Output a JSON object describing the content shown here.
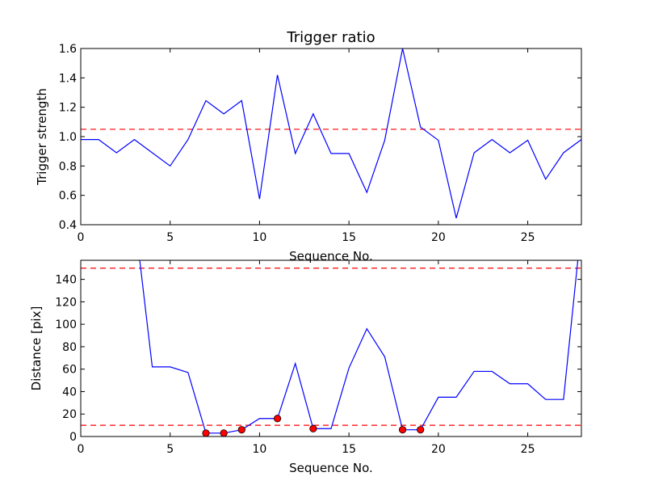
{
  "colors": {
    "line": "#0000ff",
    "ref": "#ff0000",
    "marker": "#ff0000",
    "axes": "#000000"
  },
  "chart_data": [
    {
      "id": "top",
      "type": "line",
      "title": "Trigger ratio",
      "xlabel": "Sequence No.",
      "ylabel": "Trigger strength",
      "xlim": [
        0,
        28
      ],
      "ylim": [
        0.4,
        1.6
      ],
      "xticks": [
        0,
        5,
        10,
        15,
        20,
        25
      ],
      "yticks": [
        0.4,
        0.6,
        0.8,
        1.0,
        1.2,
        1.4,
        1.6
      ],
      "series": [
        {
          "x": [
            0,
            1,
            2,
            3,
            4,
            5,
            6,
            7,
            8,
            9,
            10,
            11,
            12,
            13,
            14,
            15,
            16,
            17,
            18,
            19,
            20,
            21,
            22,
            23,
            24,
            25,
            26,
            27,
            28
          ],
          "y": [
            0.98,
            0.98,
            0.89,
            0.98,
            0.89,
            0.8,
            0.98,
            1.245,
            1.155,
            1.245,
            0.575,
            1.42,
            0.885,
            1.155,
            0.885,
            0.885,
            0.62,
            0.975,
            1.6,
            1.065,
            0.975,
            0.445,
            0.89,
            0.98,
            0.89,
            0.975,
            0.71,
            0.89,
            0.98
          ]
        }
      ],
      "hlines": [
        1.05
      ],
      "markers": []
    },
    {
      "id": "bottom",
      "type": "line",
      "title": "",
      "xlabel": "Sequence No.",
      "ylabel": "Distance [pix]",
      "xlim": [
        0,
        28
      ],
      "ylim": [
        0,
        157
      ],
      "xticks": [
        0,
        5,
        10,
        15,
        20,
        25
      ],
      "yticks": [
        0,
        20,
        40,
        60,
        80,
        100,
        120,
        140
      ],
      "series": [
        {
          "x": [
            3.3,
            4,
            5,
            6,
            7,
            8,
            9,
            10,
            11,
            12,
            13,
            14,
            15,
            16,
            17,
            18,
            19,
            20,
            21,
            22,
            23,
            24,
            25,
            26,
            27,
            27.8
          ],
          "y": [
            157,
            62,
            62,
            57,
            3,
            3,
            6,
            16,
            16,
            65,
            7,
            7,
            61,
            96,
            71,
            6,
            6,
            35,
            35,
            58,
            58,
            47,
            47,
            33,
            33,
            157
          ]
        }
      ],
      "hlines": [
        150,
        10
      ],
      "markers": [
        {
          "x": 7,
          "y": 3
        },
        {
          "x": 8,
          "y": 3
        },
        {
          "x": 9,
          "y": 6
        },
        {
          "x": 11,
          "y": 16
        },
        {
          "x": 13,
          "y": 7
        },
        {
          "x": 18,
          "y": 6
        },
        {
          "x": 19,
          "y": 6
        }
      ]
    }
  ]
}
